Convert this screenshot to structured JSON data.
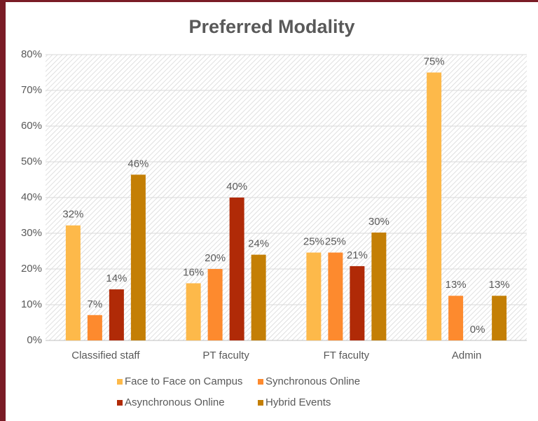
{
  "chart_data": {
    "type": "bar",
    "title": "Preferred Modality",
    "categories": [
      "Classified staff",
      "PT faculty",
      "FT faculty",
      "Admin"
    ],
    "series": [
      {
        "name": "Face to Face on Campus",
        "color": "#fdb94a",
        "values": [
          32.2,
          16.0,
          24.6,
          75.0
        ],
        "value_labels": [
          "32%",
          "16%",
          "25%",
          "75%"
        ]
      },
      {
        "name": "Synchronous Online",
        "color": "#fd8a2e",
        "values": [
          7.1,
          20.0,
          24.6,
          12.5
        ],
        "value_labels": [
          "7%",
          "20%",
          "25%",
          "13%"
        ]
      },
      {
        "name": "Asynchronous Online",
        "color": "#b02a07",
        "values": [
          14.3,
          40.0,
          20.8,
          0
        ],
        "value_labels": [
          "14%",
          "40%",
          "21%",
          "0%"
        ]
      },
      {
        "name": "Hybrid Events",
        "color": "#c47f05",
        "values": [
          46.4,
          24.0,
          30.2,
          12.5
        ],
        "value_labels": [
          "46%",
          "24%",
          "30%",
          "13%"
        ]
      }
    ],
    "ylim": [
      0,
      80
    ],
    "yticks": [
      {
        "value": 0,
        "label": "0%"
      },
      {
        "value": 10,
        "label": "10%"
      },
      {
        "value": 20,
        "label": "20%"
      },
      {
        "value": 30,
        "label": "30%"
      },
      {
        "value": 40,
        "label": "40%"
      },
      {
        "value": 50,
        "label": "50%"
      },
      {
        "value": 60,
        "label": "60%"
      },
      {
        "value": 70,
        "label": "70%"
      },
      {
        "value": 80,
        "label": "80%"
      }
    ],
    "grid": true,
    "legend": "bottom"
  }
}
